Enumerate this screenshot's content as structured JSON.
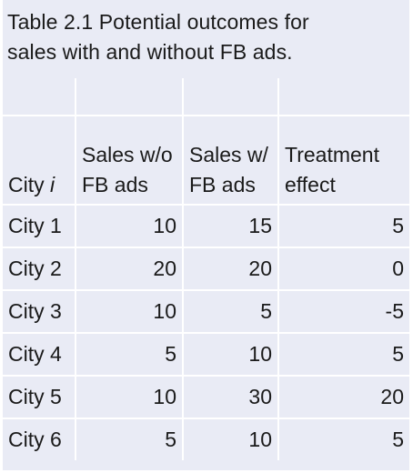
{
  "table": {
    "caption_line1": "Table 2.1 Potential outcomes for",
    "caption_line2": "sales with and without FB ads.",
    "headers": {
      "city_prefix": "City ",
      "city_var": "i",
      "sales_without_line1": "Sales w/o",
      "sales_without_line2": "FB ads",
      "sales_with_line1": "Sales w/",
      "sales_with_line2": "FB ads",
      "treatment_line1": "Treatment",
      "treatment_line2": "effect"
    },
    "rows": [
      {
        "city": "City 1",
        "sales_without": "10",
        "sales_with": "15",
        "treatment_effect": "5"
      },
      {
        "city": "City 2",
        "sales_without": "20",
        "sales_with": "20",
        "treatment_effect": "0"
      },
      {
        "city": "City 3",
        "sales_without": "10",
        "sales_with": "5",
        "treatment_effect": "-5"
      },
      {
        "city": "City 4",
        "sales_without": "5",
        "sales_with": "10",
        "treatment_effect": "5"
      },
      {
        "city": "City 5",
        "sales_without": "10",
        "sales_with": "30",
        "treatment_effect": "20"
      },
      {
        "city": "City 6",
        "sales_without": "5",
        "sales_with": "10",
        "treatment_effect": "5"
      }
    ]
  },
  "colors": {
    "cell_background": "#e9ebf5",
    "grid_line": "#ffffff",
    "text": "#1a1a1a"
  }
}
